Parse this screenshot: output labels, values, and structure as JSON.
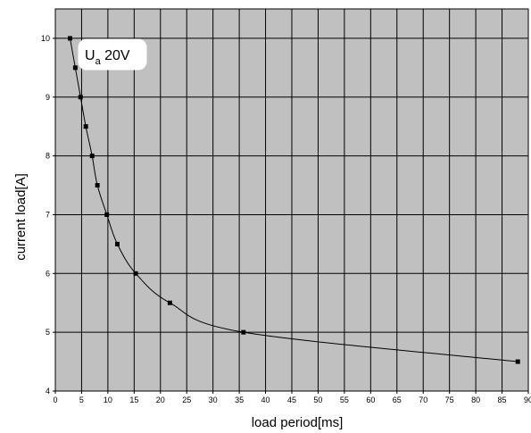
{
  "chart_data": {
    "type": "line",
    "title": "",
    "xlabel": "load period[ms]",
    "ylabel": "current load[A]",
    "xlim": [
      0,
      90
    ],
    "ylim": [
      4,
      10.5
    ],
    "x_ticks": [
      0,
      5,
      10,
      15,
      20,
      25,
      30,
      35,
      40,
      45,
      50,
      55,
      60,
      65,
      70,
      75,
      80,
      85,
      90
    ],
    "y_ticks": [
      4,
      5,
      6,
      7,
      8,
      9,
      10
    ],
    "x_tick_labels": [
      "0",
      "5",
      "10",
      "15",
      "20",
      "25",
      "30",
      "35",
      "40",
      "45",
      "50",
      "55",
      "60",
      "65",
      "70",
      "75",
      "80",
      "85",
      "90"
    ],
    "y_tick_labels": [
      "4",
      "5",
      "6",
      "7",
      "8",
      "9",
      "10"
    ],
    "grid": true,
    "plot_background": "#c0c0c0",
    "line_color": "#000000",
    "annotation": {
      "main": "U",
      "sub": "a",
      "rest": " 20V"
    },
    "series": [
      {
        "x": [
          2.8,
          3.8,
          4.8,
          5.8,
          7.0,
          8.0,
          9.8,
          11.8,
          15.3,
          21.8,
          35.8,
          88.0
        ],
        "y": [
          10.0,
          9.5,
          9.0,
          8.5,
          8.0,
          7.5,
          7.0,
          6.5,
          6.0,
          5.5,
          5.0,
          4.5
        ]
      }
    ]
  }
}
